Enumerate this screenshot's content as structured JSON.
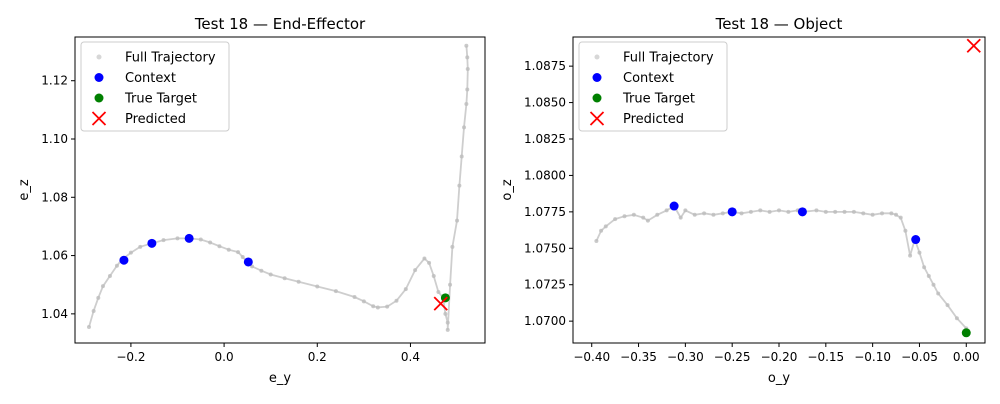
{
  "chart_data": [
    {
      "type": "scatter",
      "title": "Test 18 — End-Effector",
      "xlabel": "e_y",
      "ylabel": "e_z",
      "xlim": [
        -0.32,
        0.56
      ],
      "ylim": [
        1.03,
        1.135
      ],
      "xticks": [
        -0.2,
        0.0,
        0.2,
        0.4
      ],
      "xtick_labels": [
        "−0.2",
        "0.0",
        "0.2",
        "0.4"
      ],
      "yticks": [
        1.04,
        1.06,
        1.08,
        1.1,
        1.12
      ],
      "ytick_labels": [
        "1.04",
        "1.06",
        "1.08",
        "1.10",
        "1.12"
      ],
      "grid": false,
      "legend_position": "top-left",
      "legend": [
        "Full Trajectory",
        "Context",
        "True Target",
        "Predicted"
      ],
      "colors": {
        "trajectory": "#bdbdbd",
        "context": "#0000ff",
        "target": "#008000",
        "predicted": "#ff0000"
      },
      "series": [
        {
          "name": "Full Trajectory",
          "marker": "dot",
          "x": [
            -0.29,
            -0.28,
            -0.27,
            -0.26,
            -0.245,
            -0.23,
            -0.22,
            -0.2,
            -0.18,
            -0.155,
            -0.13,
            -0.1,
            -0.075,
            -0.05,
            -0.03,
            -0.01,
            0.01,
            0.03,
            0.04,
            0.05,
            0.06,
            0.08,
            0.1,
            0.13,
            0.16,
            0.2,
            0.24,
            0.28,
            0.3,
            0.32,
            0.33,
            0.35,
            0.37,
            0.39,
            0.41,
            0.43,
            0.44,
            0.45,
            0.46,
            0.47,
            0.475,
            0.48,
            0.48,
            0.485,
            0.49,
            0.5,
            0.505,
            0.51,
            0.515,
            0.52,
            0.522,
            0.523,
            0.522,
            0.52
          ],
          "y": [
            1.0355,
            1.041,
            1.0455,
            1.0495,
            1.053,
            1.0565,
            1.0585,
            1.061,
            1.063,
            1.0642,
            1.0653,
            1.0659,
            1.0659,
            1.0655,
            1.0645,
            1.0632,
            1.062,
            1.0612,
            1.0595,
            1.0578,
            1.0563,
            1.0548,
            1.0535,
            1.0522,
            1.051,
            1.0494,
            1.0478,
            1.0458,
            1.0443,
            1.0426,
            1.0422,
            1.0425,
            1.0445,
            1.0485,
            1.055,
            1.059,
            1.0575,
            1.053,
            1.0475,
            1.0455,
            1.04,
            1.037,
            1.0345,
            1.05,
            1.063,
            1.072,
            1.084,
            1.094,
            1.104,
            1.112,
            1.117,
            1.124,
            1.128,
            1.132
          ]
        },
        {
          "name": "Context",
          "marker": "circle",
          "x": [
            -0.215,
            -0.155,
            -0.075,
            0.052
          ],
          "y": [
            1.0584,
            1.0642,
            1.0659,
            1.0578
          ]
        },
        {
          "name": "True Target",
          "marker": "circle",
          "x": [
            0.475
          ],
          "y": [
            1.0455
          ]
        },
        {
          "name": "Predicted",
          "marker": "x",
          "x": [
            0.465
          ],
          "y": [
            1.0435
          ]
        }
      ]
    },
    {
      "type": "scatter",
      "title": "Test 18 — Object",
      "xlabel": "o_y",
      "ylabel": "o_z",
      "xlim": [
        -0.42,
        0.02
      ],
      "ylim": [
        1.0685,
        1.0895
      ],
      "xticks": [
        -0.4,
        -0.35,
        -0.3,
        -0.25,
        -0.2,
        -0.15,
        -0.1,
        -0.05,
        0.0
      ],
      "xtick_labels": [
        "−0.40",
        "−0.35",
        "−0.30",
        "−0.25",
        "−0.20",
        "−0.15",
        "−0.10",
        "−0.05",
        "0.00"
      ],
      "yticks": [
        1.07,
        1.0725,
        1.075,
        1.0775,
        1.08,
        1.0825,
        1.085,
        1.0875
      ],
      "ytick_labels": [
        "1.0700",
        "1.0725",
        "1.0750",
        "1.0775",
        "1.0800",
        "1.0825",
        "1.0850",
        "1.0875"
      ],
      "grid": false,
      "legend_position": "top-left",
      "legend": [
        "Full Trajectory",
        "Context",
        "True Target",
        "Predicted"
      ],
      "colors": {
        "trajectory": "#bdbdbd",
        "context": "#0000ff",
        "target": "#008000",
        "predicted": "#ff0000"
      },
      "series": [
        {
          "name": "Full Trajectory",
          "marker": "dot",
          "x": [
            -0.395,
            -0.39,
            -0.385,
            -0.375,
            -0.365,
            -0.355,
            -0.345,
            -0.34,
            -0.33,
            -0.32,
            -0.312,
            -0.305,
            -0.3,
            -0.29,
            -0.28,
            -0.27,
            -0.26,
            -0.25,
            -0.24,
            -0.23,
            -0.22,
            -0.21,
            -0.2,
            -0.19,
            -0.18,
            -0.175,
            -0.16,
            -0.15,
            -0.14,
            -0.13,
            -0.12,
            -0.11,
            -0.1,
            -0.09,
            -0.08,
            -0.075,
            -0.07,
            -0.065,
            -0.06,
            -0.055,
            -0.05,
            -0.045,
            -0.04,
            -0.035,
            -0.03,
            -0.02,
            -0.01,
            0.0
          ],
          "y": [
            1.0755,
            1.0762,
            1.0765,
            1.077,
            1.0772,
            1.0773,
            1.0771,
            1.0769,
            1.0773,
            1.0776,
            1.0779,
            1.0771,
            1.0776,
            1.0773,
            1.0774,
            1.0773,
            1.0774,
            1.0775,
            1.0774,
            1.0775,
            1.0776,
            1.0775,
            1.0776,
            1.0775,
            1.0776,
            1.0775,
            1.0776,
            1.0775,
            1.0775,
            1.0775,
            1.0775,
            1.0774,
            1.0773,
            1.0774,
            1.0774,
            1.0773,
            1.0771,
            1.0762,
            1.0745,
            1.0756,
            1.0747,
            1.0737,
            1.0731,
            1.0725,
            1.0719,
            1.0711,
            1.0702,
            1.0695
          ]
        },
        {
          "name": "Context",
          "marker": "circle",
          "x": [
            -0.312,
            -0.25,
            -0.175,
            -0.054
          ],
          "y": [
            1.0779,
            1.0775,
            1.0775,
            1.0756
          ]
        },
        {
          "name": "True Target",
          "marker": "circle",
          "x": [
            0.0
          ],
          "y": [
            1.0692
          ]
        },
        {
          "name": "Predicted",
          "marker": "x",
          "x": [
            0.008
          ],
          "y": [
            1.0889
          ]
        }
      ]
    }
  ]
}
